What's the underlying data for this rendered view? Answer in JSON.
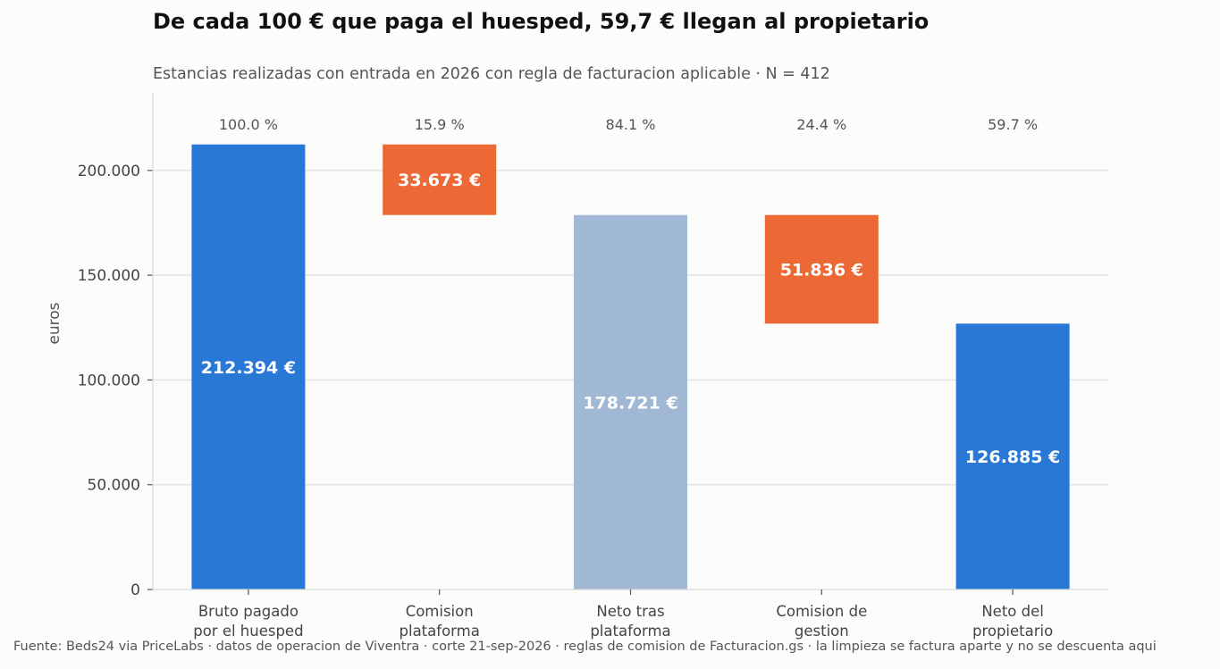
{
  "chart_data": {
    "type": "bar",
    "subtype": "waterfall",
    "title": "De cada 100 € que paga el huesped, 59,7 € llegan al propietario",
    "subtitle": "Estancias realizadas con entrada en 2026 con regla de facturacion aplicable · N = 412",
    "ylabel": "euros",
    "xlabel": "",
    "ylim": [
      0,
      237000
    ],
    "yticks": [
      0,
      50000,
      100000,
      150000,
      200000
    ],
    "ytick_labels": [
      "0",
      "50.000",
      "100.000",
      "150.000",
      "200.000"
    ],
    "grid": true,
    "categories": [
      [
        "Bruto pagado",
        "por el huesped"
      ],
      [
        "Comision",
        "plataforma"
      ],
      [
        "Neto tras",
        "plataforma"
      ],
      [
        "Comision de",
        "gestion"
      ],
      [
        "Neto del",
        "propietario"
      ]
    ],
    "bars": [
      {
        "kind": "total",
        "start": 0,
        "end": 212394,
        "label": "212.394 €",
        "pct": "100.0 %"
      },
      {
        "kind": "decrease",
        "start": 178721,
        "end": 212394,
        "label": "33.673 €",
        "pct": "15.9 %"
      },
      {
        "kind": "subtotal",
        "start": 0,
        "end": 178721,
        "label": "178.721 €",
        "pct": "84.1 %"
      },
      {
        "kind": "decrease",
        "start": 126885,
        "end": 178721,
        "label": "51.836 €",
        "pct": "24.4 %"
      },
      {
        "kind": "total",
        "start": 0,
        "end": 126885,
        "label": "126.885 €",
        "pct": "59.7 %"
      }
    ],
    "colors": {
      "total": "#2a78d6",
      "decrease": "#ec6936",
      "subtotal": "#a0b8d4"
    }
  },
  "source": "Fuente: Beds24 via PriceLabs · datos de operacion de Viventra · corte 21-sep-2026 · reglas de comision de Facturacion.gs · la limpieza se factura aparte y no se descuenta aqui"
}
